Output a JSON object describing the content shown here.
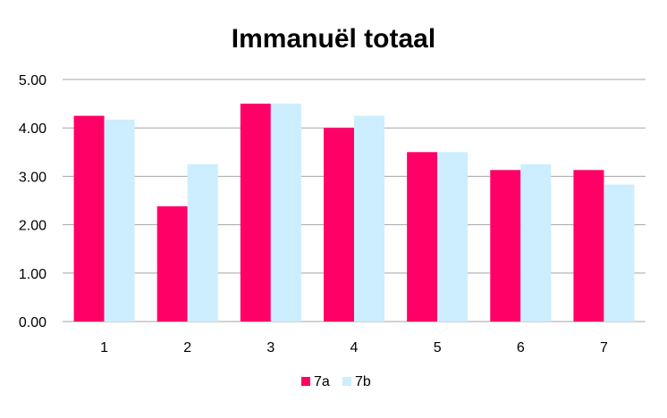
{
  "chart_data": {
    "type": "bar",
    "title": "Immanuël totaal",
    "xlabel": "",
    "ylabel": "",
    "categories": [
      "1",
      "2",
      "3",
      "4",
      "5",
      "6",
      "7"
    ],
    "series": [
      {
        "name": "7a",
        "color": "#ff0066",
        "values": [
          4.25,
          2.38,
          4.5,
          4.0,
          3.5,
          3.13,
          3.13
        ]
      },
      {
        "name": "7b",
        "color": "#cceeff",
        "values": [
          4.17,
          3.25,
          4.5,
          4.25,
          3.5,
          3.25,
          2.83
        ]
      }
    ],
    "ylim": [
      0,
      5
    ],
    "yticks": [
      "0.00",
      "1.00",
      "2.00",
      "3.00",
      "4.00",
      "5.00"
    ],
    "grid": true,
    "legend_position": "bottom",
    "gridline_color": "#a6a6a6"
  }
}
